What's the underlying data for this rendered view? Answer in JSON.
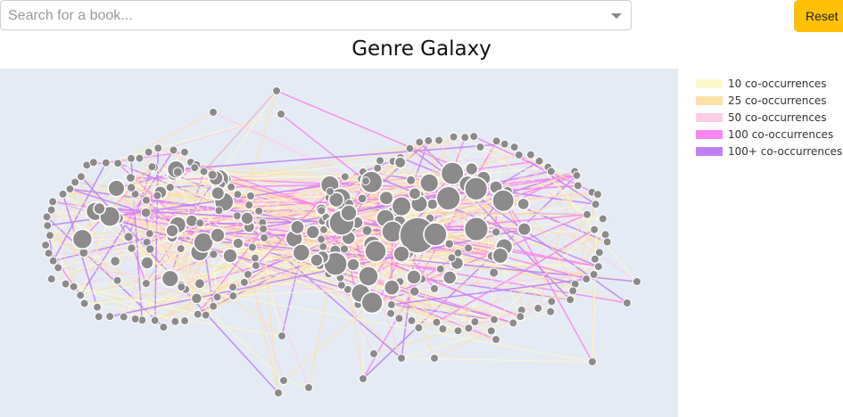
{
  "search": {
    "placeholder": "Search for a book...",
    "value": ""
  },
  "reset_label": "Reset",
  "chart_data": {
    "type": "network",
    "title": "Genre Galaxy",
    "background": "#e5ebf5",
    "node_color": "#8c8a8a",
    "node_stroke": "#ffffff",
    "legend_placement": "right",
    "legend": [
      {
        "label": "10 co-occurrences",
        "color": "#fbf8cc"
      },
      {
        "label": "25 co-occurrences",
        "color": "#fde0a6"
      },
      {
        "label": "50 co-occurrences",
        "color": "#fecde8"
      },
      {
        "label": "100 co-occurrences",
        "color": "#f985f0"
      },
      {
        "label": "100+ co-occurrences",
        "color": "#c17ff6"
      }
    ]
  }
}
